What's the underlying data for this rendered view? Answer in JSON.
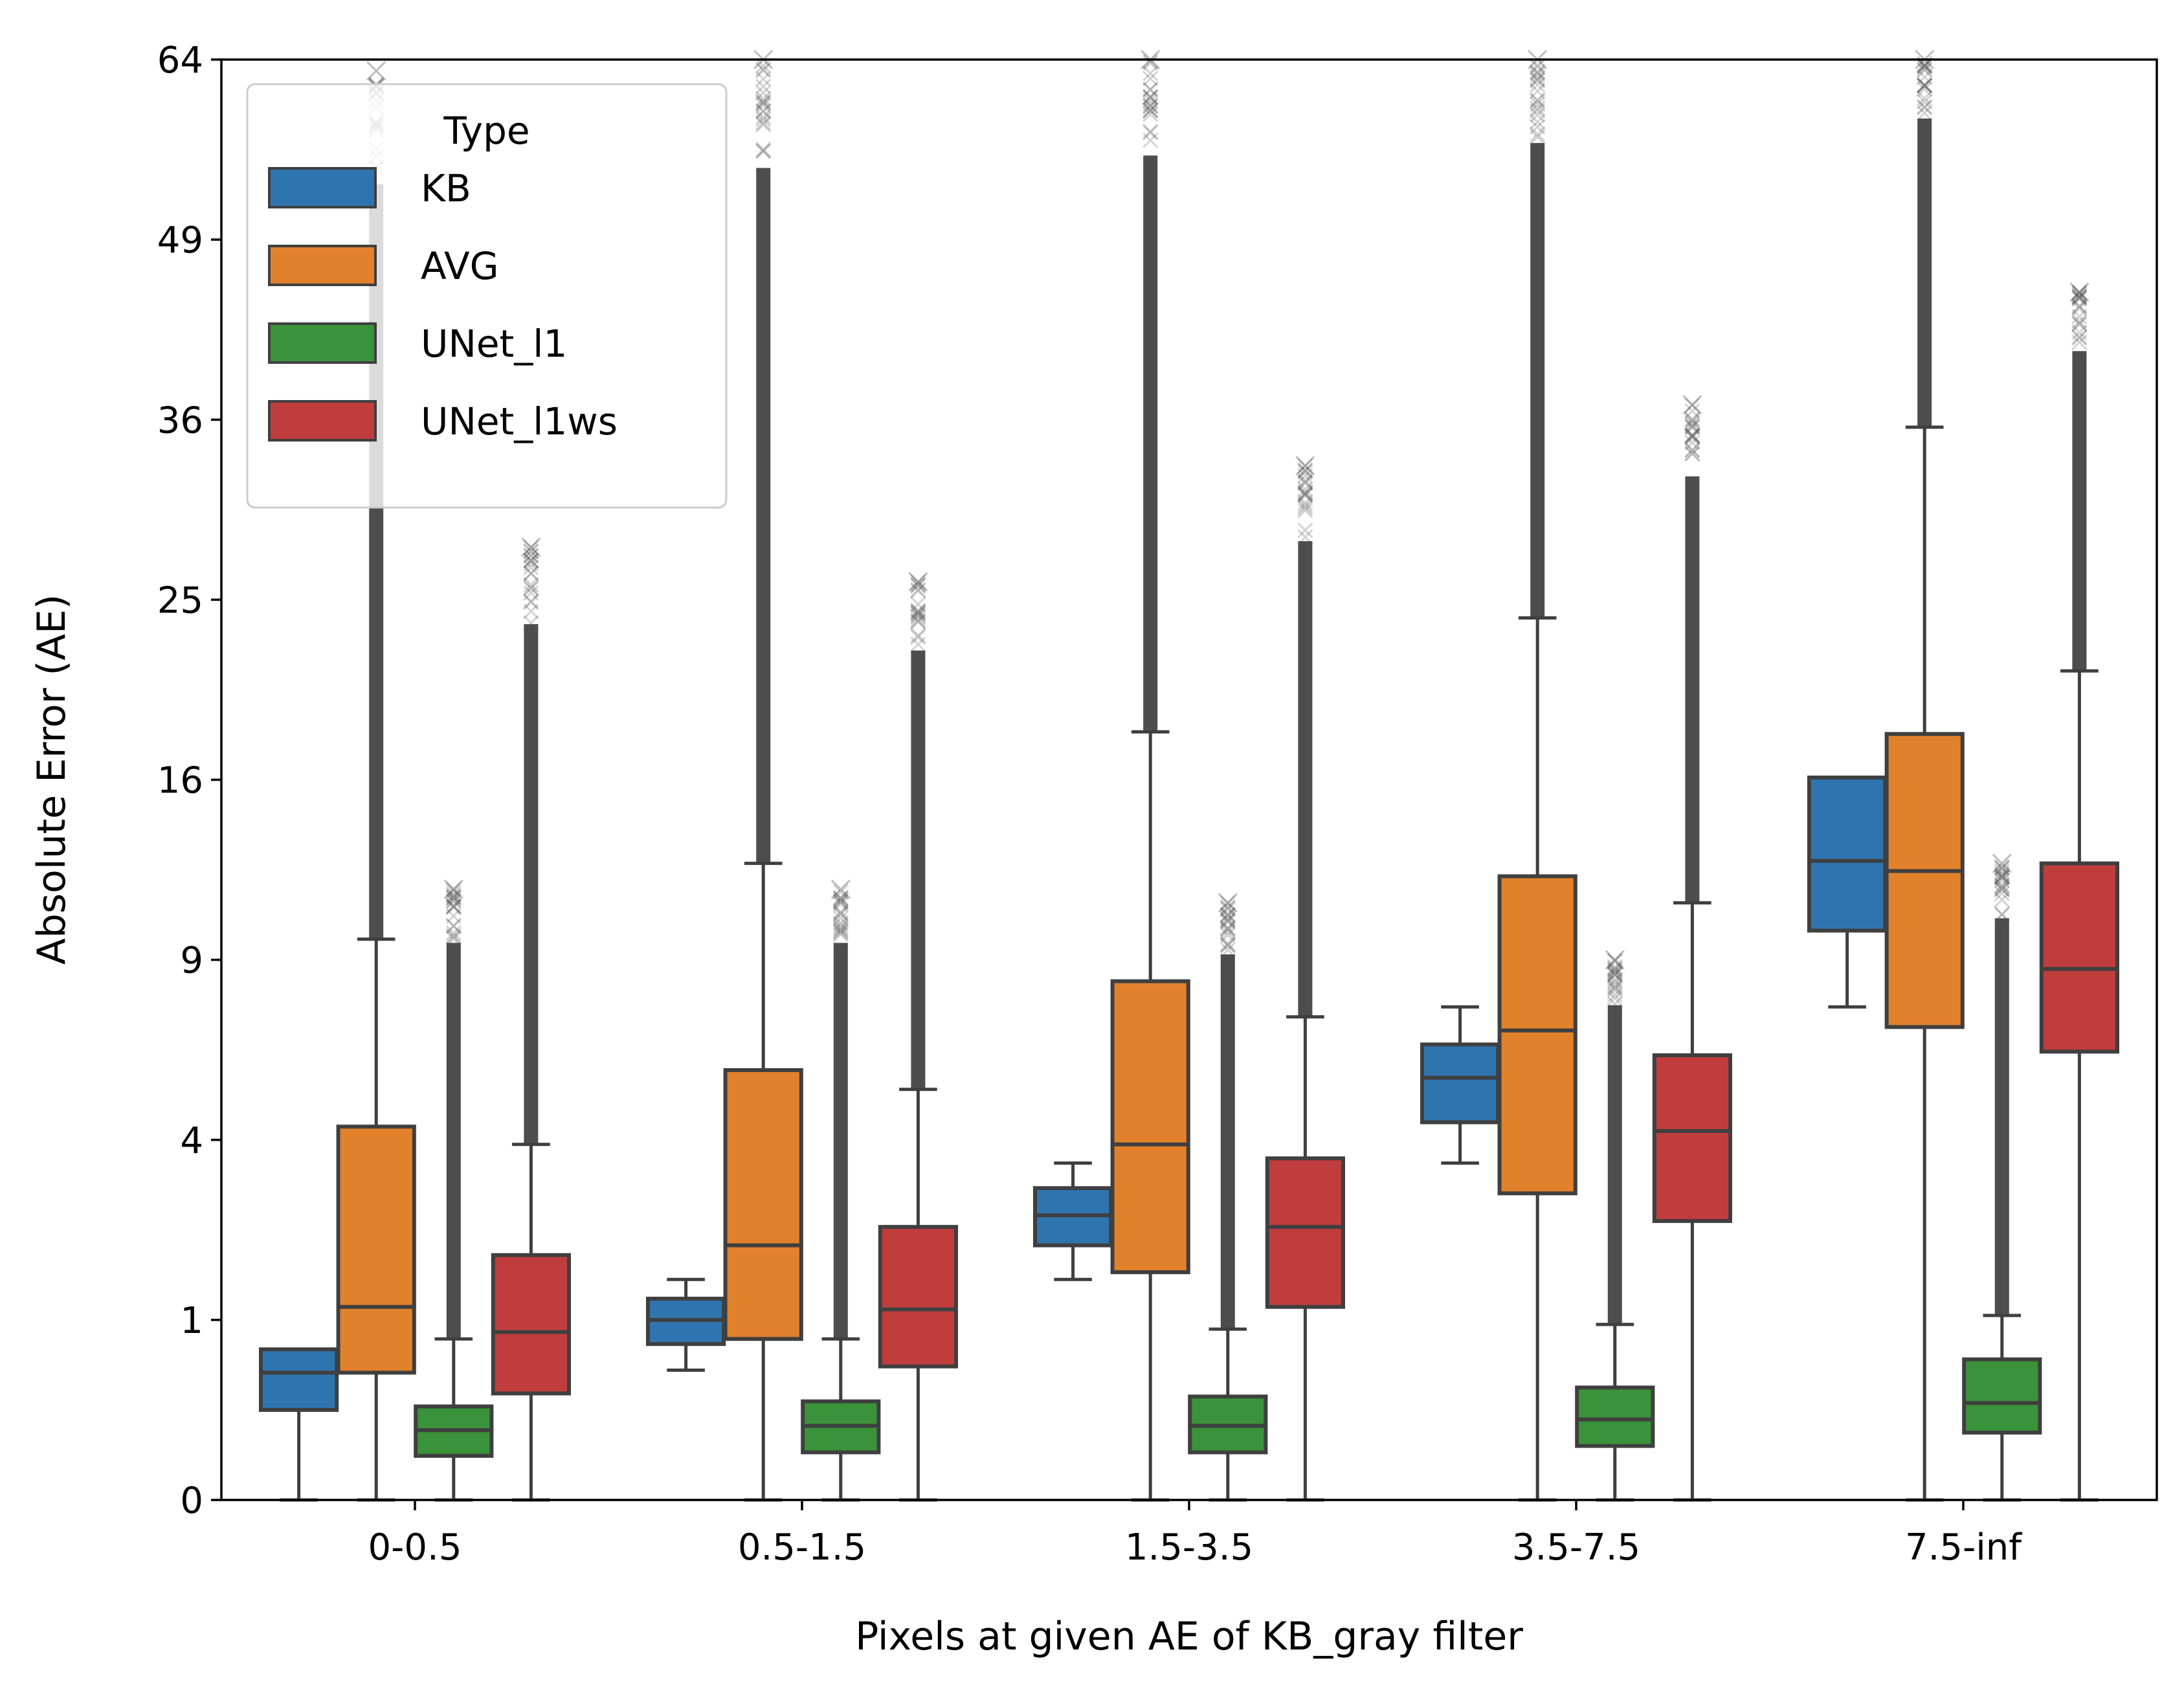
{
  "chart_data": {
    "type": "box",
    "xlabel": "Pixels at given AE of KB_gray filter",
    "ylabel": "Absolute Error (AE)",
    "y_scale": "sqrt",
    "ylim": [
      0,
      64
    ],
    "yticks": [
      0,
      1,
      4,
      9,
      16,
      25,
      36,
      49,
      64
    ],
    "categories": [
      "0-0.5",
      "0.5-1.5",
      "1.5-3.5",
      "3.5-7.5",
      "7.5-inf"
    ],
    "grid": false,
    "legend": {
      "title": "Type",
      "placement": "top-left"
    },
    "series": [
      {
        "name": "KB",
        "color": "#2e75b0",
        "boxes": [
          {
            "whisker_low": 0.0,
            "q1": 0.25,
            "median": 0.5,
            "q3": 0.7,
            "whisker_high": 0.7,
            "outlier_max": null
          },
          {
            "whisker_low": 0.52,
            "q1": 0.75,
            "median": 1.0,
            "q3": 1.25,
            "whisker_high": 1.5,
            "outlier_max": null
          },
          {
            "whisker_low": 1.5,
            "q1": 2.0,
            "median": 2.5,
            "q3": 3.0,
            "whisker_high": 3.5,
            "outlier_max": null
          },
          {
            "whisker_low": 3.5,
            "q1": 4.4,
            "median": 5.5,
            "q3": 6.4,
            "whisker_high": 7.5,
            "outlier_max": null
          },
          {
            "whisker_low": 7.5,
            "q1": 10.0,
            "median": 12.6,
            "q3": 16.1,
            "whisker_high": 16.1,
            "outlier_max": null
          }
        ]
      },
      {
        "name": "AVG",
        "color": "#e1812c",
        "boxes": [
          {
            "whisker_low": 0.0,
            "q1": 0.5,
            "median": 1.15,
            "q3": 4.3,
            "whisker_high": 9.7,
            "outlier_max": 63.0
          },
          {
            "whisker_low": 0.0,
            "q1": 0.8,
            "median": 2.0,
            "q3": 5.7,
            "whisker_high": 12.5,
            "outlier_max": 64.0
          },
          {
            "whisker_low": 0.0,
            "q1": 1.6,
            "median": 3.9,
            "q3": 8.3,
            "whisker_high": 18.2,
            "outlier_max": 64.0
          },
          {
            "whisker_low": 0.0,
            "q1": 2.9,
            "median": 6.8,
            "q3": 12.0,
            "whisker_high": 24.0,
            "outlier_max": 64.0
          },
          {
            "whisker_low": 0.0,
            "q1": 6.9,
            "median": 12.2,
            "q3": 18.1,
            "whisker_high": 35.5,
            "outlier_max": 64.0
          }
        ]
      },
      {
        "name": "UNet_l1",
        "color": "#3a923a",
        "boxes": [
          {
            "whisker_low": 0.0,
            "q1": 0.06,
            "median": 0.15,
            "q3": 0.27,
            "whisker_high": 0.8,
            "outlier_max": 11.5
          },
          {
            "whisker_low": 0.0,
            "q1": 0.07,
            "median": 0.17,
            "q3": 0.3,
            "whisker_high": 0.8,
            "outlier_max": 11.5
          },
          {
            "whisker_low": 0.0,
            "q1": 0.07,
            "median": 0.17,
            "q3": 0.33,
            "whisker_high": 0.9,
            "outlier_max": 11.0
          },
          {
            "whisker_low": 0.0,
            "q1": 0.09,
            "median": 0.2,
            "q3": 0.39,
            "whisker_high": 0.95,
            "outlier_max": 9.0
          },
          {
            "whisker_low": 0.0,
            "q1": 0.14,
            "median": 0.29,
            "q3": 0.61,
            "whisker_high": 1.05,
            "outlier_max": 12.5
          }
        ]
      },
      {
        "name": "UNet_l1ws",
        "color": "#c03d3e",
        "boxes": [
          {
            "whisker_low": 0.0,
            "q1": 0.35,
            "median": 0.87,
            "q3": 1.85,
            "whisker_high": 3.9,
            "outlier_max": 28.0
          },
          {
            "whisker_low": 0.0,
            "q1": 0.55,
            "median": 1.12,
            "q3": 2.3,
            "whisker_high": 5.2,
            "outlier_max": 26.0
          },
          {
            "whisker_low": 0.0,
            "q1": 1.15,
            "median": 2.3,
            "q3": 3.6,
            "whisker_high": 7.2,
            "outlier_max": 33.0
          },
          {
            "whisker_low": 0.0,
            "q1": 2.4,
            "median": 4.2,
            "q3": 6.1,
            "whisker_high": 11.0,
            "outlier_max": 37.0
          },
          {
            "whisker_low": 0.0,
            "q1": 6.2,
            "median": 8.7,
            "q3": 12.5,
            "whisker_high": 21.2,
            "outlier_max": 45.0
          }
        ]
      }
    ]
  }
}
